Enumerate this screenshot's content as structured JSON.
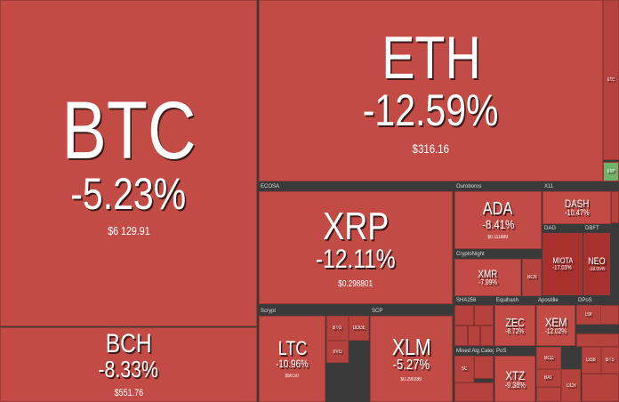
{
  "chart_data": {
    "type": "treemap",
    "groups": [
      "ECOSA",
      "Ouroboros",
      "X11",
      "DAG",
      "DBFT",
      "CryptoNight",
      "Scrypt",
      "SCP",
      "SHA256",
      "Equihash",
      "Apostille",
      "DPoS",
      "Mixed Alg Categ...",
      "PoS"
    ],
    "tiles": [
      {
        "name": "BTC",
        "change": -5.23,
        "change_label": "-5.23%",
        "price": "$6 129.91"
      },
      {
        "name": "BCH",
        "change": -8.33,
        "change_label": "-8.33%",
        "price": "$551.76"
      },
      {
        "name": "ETH",
        "change": -12.59,
        "change_label": "-12.59%",
        "price": "$316.16"
      },
      {
        "name": "XRP",
        "change": -12.11,
        "change_label": "-12.11%",
        "price": "$0.298801"
      },
      {
        "name": "ADA",
        "change": -8.41,
        "change_label": "-8.41%",
        "price": "$0.111889"
      },
      {
        "name": "DASH",
        "change": -10.47,
        "change_label": "-10.47%"
      },
      {
        "name": "MIOTA",
        "change": -17.03,
        "change_label": "-17.03%"
      },
      {
        "name": "NEO",
        "change": -18.05,
        "change_label": "-18.05%"
      },
      {
        "name": "XMR",
        "change": -7.99,
        "change_label": "-7.99%"
      },
      {
        "name": "BCN"
      },
      {
        "name": "LTC",
        "change": -10.96,
        "change_label": "-10.96%",
        "price": "$56.50"
      },
      {
        "name": "XLM",
        "change": -5.27,
        "change_label": "-5.27%",
        "price": "$0.290289"
      },
      {
        "name": "ZEC",
        "change": -8.72,
        "change_label": "-8.72%"
      },
      {
        "name": "XEM",
        "change": -12.02,
        "change_label": "-12.02%"
      },
      {
        "name": "XTZ",
        "change": -9.38,
        "change_label": "-9.38%"
      },
      {
        "name": "BTG"
      },
      {
        "name": "DOGE"
      },
      {
        "name": "XVG"
      },
      {
        "name": "ETC"
      },
      {
        "name": "EXP"
      },
      {
        "name": "BCD"
      },
      {
        "name": "BAT"
      },
      {
        "name": "DCR"
      },
      {
        "name": "DGB"
      },
      {
        "name": "BTS"
      },
      {
        "name": "SC"
      },
      {
        "name": "LSK"
      }
    ]
  }
}
